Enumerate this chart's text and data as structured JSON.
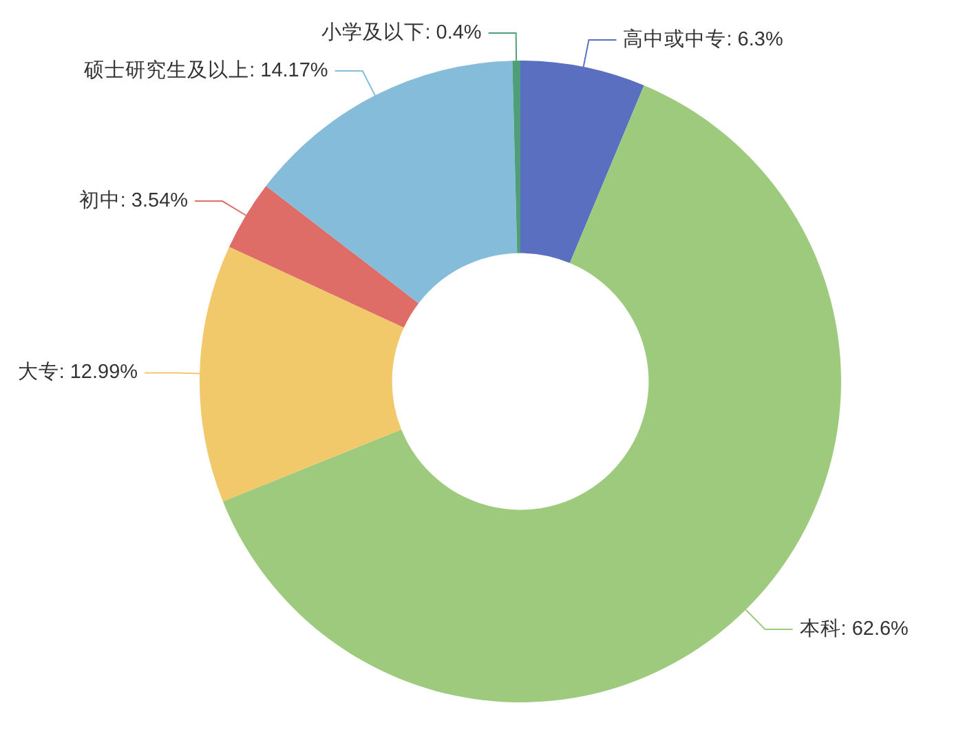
{
  "chart_data": {
    "type": "donut",
    "categories": [
      "高中或中专",
      "本科",
      "大专",
      "初中",
      "硕士研究生及以上",
      "小学及以下"
    ],
    "values": [
      6.3,
      62.6,
      12.99,
      3.54,
      14.17,
      0.4
    ],
    "value_labels": [
      "6.3%",
      "62.6%",
      "12.99%",
      "3.54%",
      "14.17%",
      "0.4%"
    ],
    "colors": [
      "#5a6fc0",
      "#9eca7d",
      "#f1c96b",
      "#df6d67",
      "#84bcda",
      "#4e9f78"
    ],
    "legend": false
  }
}
